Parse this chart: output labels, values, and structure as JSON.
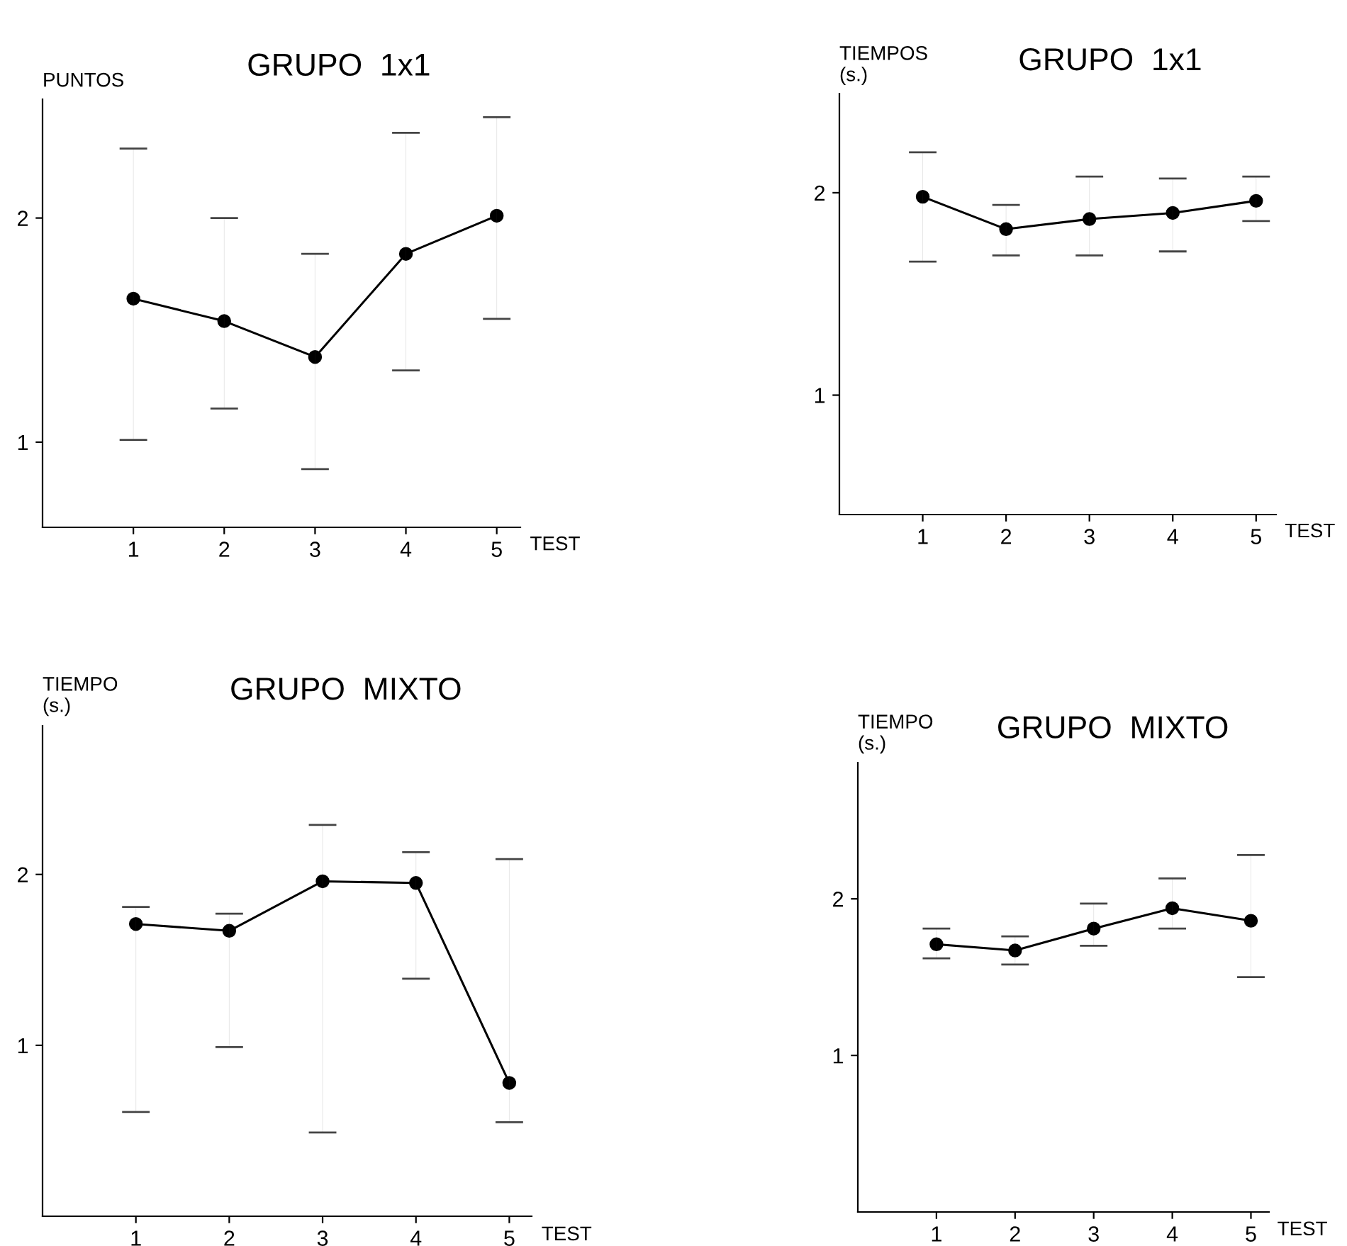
{
  "chart_data": [
    {
      "type": "line",
      "title": "GRUPO  1x1",
      "ylabel": "PUNTOS",
      "xlabel": "TEST",
      "x": [
        1,
        2,
        3,
        4,
        5
      ],
      "xlim": [
        0,
        5.26
      ],
      "xticks": [
        1,
        2,
        3,
        4,
        5
      ],
      "ylim": [
        0.62,
        2.53
      ],
      "yticks": [
        1,
        2
      ],
      "marker": "circle",
      "series": [
        {
          "color": "#000000",
          "values": [
            1.64,
            1.54,
            1.38,
            1.84,
            2.01
          ],
          "errors": [
            [
              1.01,
              2.31
            ],
            [
              1.15,
              2.0
            ],
            [
              0.88,
              1.84
            ],
            [
              1.32,
              2.38
            ],
            [
              1.55,
              2.45
            ]
          ]
        }
      ]
    },
    {
      "type": "line",
      "title": "GRUPO  1x1",
      "ylabel": "TIEMPOS\n(s.)",
      "xlabel": "TEST",
      "x": [
        1,
        2,
        3,
        4,
        5
      ],
      "xlim": [
        0,
        5.24
      ],
      "xticks": [
        1,
        2,
        3,
        4,
        5
      ],
      "ylim": [
        0.41,
        2.49
      ],
      "yticks": [
        1,
        2
      ],
      "marker": "circle",
      "series": [
        {
          "color": "#000000",
          "values": [
            1.98,
            1.82,
            1.87,
            1.9,
            1.96
          ],
          "errors": [
            [
              1.66,
              2.2
            ],
            [
              1.69,
              1.94
            ],
            [
              1.69,
              2.08
            ],
            [
              1.71,
              2.07
            ],
            [
              1.86,
              2.08
            ]
          ]
        }
      ]
    },
    {
      "type": "line",
      "title": "GRUPO  MIXTO",
      "ylabel": "TIEMPO\n(s.)",
      "xlabel": "TEST",
      "x": [
        1,
        2,
        3,
        4,
        5
      ],
      "xlim": [
        0,
        5.24
      ],
      "xticks": [
        1,
        2,
        3,
        4,
        5
      ],
      "ylim": [
        0,
        2.87
      ],
      "yticks": [
        1,
        2
      ],
      "marker": "circle",
      "series": [
        {
          "color": "#000000",
          "values": [
            1.71,
            1.67,
            1.96,
            1.95,
            0.78
          ],
          "errors": [
            [
              0.61,
              1.81
            ],
            [
              0.99,
              1.77
            ],
            [
              0.49,
              2.29
            ],
            [
              1.39,
              2.13
            ],
            [
              0.55,
              2.09
            ]
          ]
        }
      ]
    },
    {
      "type": "line",
      "title": "GRUPO  MIXTO",
      "ylabel": "TIEMPO\n(s.)",
      "xlabel": "TEST",
      "x": [
        1,
        2,
        3,
        4,
        5
      ],
      "xlim": [
        0,
        5.23
      ],
      "xticks": [
        1,
        2,
        3,
        4,
        5
      ],
      "ylim": [
        0,
        2.87
      ],
      "yticks": [
        1,
        2
      ],
      "marker": "circle",
      "series": [
        {
          "color": "#000000",
          "values": [
            1.71,
            1.67,
            1.81,
            1.94,
            1.86
          ],
          "errors": [
            [
              1.62,
              1.81
            ],
            [
              1.58,
              1.76
            ],
            [
              1.7,
              1.97
            ],
            [
              1.81,
              2.13
            ],
            [
              1.5,
              2.28
            ]
          ]
        }
      ]
    }
  ]
}
